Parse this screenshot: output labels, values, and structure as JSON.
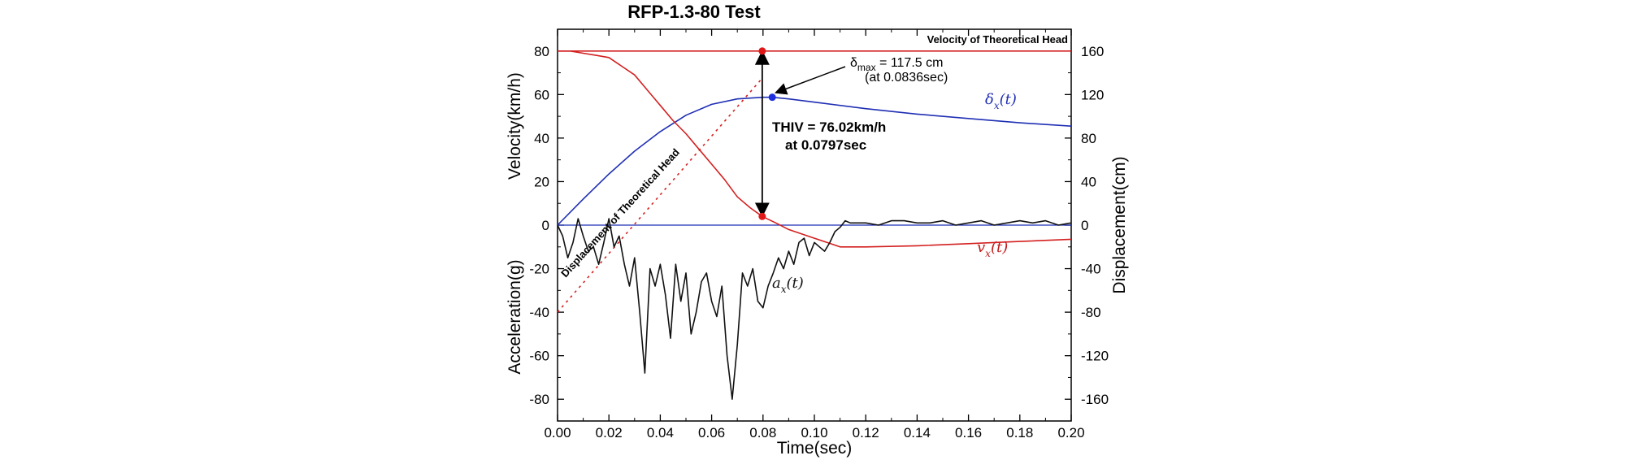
{
  "chart_data": {
    "type": "line",
    "title": "RFP-1.3-80 Test",
    "xlabel": "Time(sec)",
    "ylabel_left_top": "Velocity(km/h)",
    "ylabel_left_bottom": "Acceleration(g)",
    "ylabel_right": "Displacement(cm)",
    "xlim": [
      0,
      0.2
    ],
    "ylim_left": [
      -90,
      90
    ],
    "ylim_right": [
      -180,
      180
    ],
    "x_ticks": [
      0.0,
      0.02,
      0.04,
      0.06,
      0.08,
      0.1,
      0.12,
      0.14,
      0.16,
      0.18,
      0.2
    ],
    "x_tick_labels": [
      "0.00",
      "0.02",
      "0.04",
      "0.06",
      "0.08",
      "0.10",
      "0.12",
      "0.14",
      "0.16",
      "0.18",
      "0.20"
    ],
    "y_left_ticks": [
      80,
      60,
      40,
      20,
      0,
      -20,
      -40,
      -60,
      -80
    ],
    "y_left_tick_labels": [
      "80",
      "60",
      "40",
      "20",
      "0",
      "-20",
      "-40",
      "-60",
      "-80"
    ],
    "y_right_ticks": [
      160,
      120,
      80,
      40,
      0,
      -40,
      -80,
      -120,
      -160
    ],
    "y_right_tick_labels": [
      "160",
      "120",
      "80",
      "40",
      "0",
      "-40",
      "-80",
      "-120",
      "-160"
    ],
    "grid": false,
    "series": [
      {
        "name": "δx(t)",
        "label_main": "δ",
        "label_sub": "x",
        "label_arg": "(t)",
        "color": "#1f2fb4",
        "axis": "right",
        "x": [
          0,
          0.01,
          0.02,
          0.03,
          0.04,
          0.05,
          0.06,
          0.07,
          0.08,
          0.0836,
          0.09,
          0.1,
          0.12,
          0.14,
          0.16,
          0.18,
          0.2
        ],
        "y": [
          0,
          24,
          47,
          68,
          86,
          101,
          111,
          116,
          117.5,
          117.5,
          116,
          113,
          107,
          102,
          98,
          94,
          91
        ]
      },
      {
        "name": "vx(t)",
        "label_main": "v",
        "label_sub": "x",
        "label_arg": "(t)",
        "color": "#d42020",
        "axis": "left",
        "x": [
          0,
          0.005,
          0.01,
          0.015,
          0.02,
          0.025,
          0.03,
          0.035,
          0.04,
          0.045,
          0.05,
          0.055,
          0.06,
          0.065,
          0.07,
          0.075,
          0.0797,
          0.085,
          0.09,
          0.095,
          0.1,
          0.105,
          0.11,
          0.12,
          0.14,
          0.16,
          0.18,
          0.2
        ],
        "y": [
          80,
          80,
          79,
          78,
          77,
          73,
          69,
          62,
          55,
          48,
          42,
          35,
          28,
          21,
          13,
          8,
          4,
          1,
          -2,
          -4,
          -6,
          -8,
          -10,
          -10,
          -9.5,
          -8.5,
          -7.5,
          -6.5
        ]
      },
      {
        "name": "ax(t)",
        "label_main": "a",
        "label_sub": "x",
        "label_arg": "(t)",
        "color": "#111111",
        "axis": "left",
        "x": [
          0,
          0.002,
          0.004,
          0.006,
          0.008,
          0.01,
          0.012,
          0.014,
          0.016,
          0.018,
          0.02,
          0.022,
          0.024,
          0.026,
          0.028,
          0.03,
          0.032,
          0.034,
          0.036,
          0.038,
          0.04,
          0.042,
          0.044,
          0.046,
          0.048,
          0.05,
          0.052,
          0.054,
          0.056,
          0.058,
          0.06,
          0.062,
          0.064,
          0.066,
          0.068,
          0.07,
          0.072,
          0.074,
          0.076,
          0.078,
          0.08,
          0.082,
          0.084,
          0.086,
          0.088,
          0.09,
          0.092,
          0.094,
          0.096,
          0.098,
          0.1,
          0.102,
          0.104,
          0.106,
          0.108,
          0.11,
          0.112,
          0.114,
          0.118,
          0.12,
          0.125,
          0.13,
          0.135,
          0.14,
          0.145,
          0.15,
          0.155,
          0.16,
          0.165,
          0.17,
          0.175,
          0.18,
          0.185,
          0.19,
          0.195,
          0.2
        ],
        "y": [
          0,
          -5,
          -15,
          -8,
          3,
          -5,
          -12,
          -10,
          -18,
          -8,
          3,
          -10,
          -5,
          -18,
          -28,
          -15,
          -40,
          -68,
          -20,
          -28,
          -18,
          -32,
          -52,
          -18,
          -35,
          -22,
          -50,
          -40,
          -26,
          -22,
          -35,
          -42,
          -28,
          -60,
          -80,
          -55,
          -22,
          -28,
          -20,
          -35,
          -38,
          -28,
          -22,
          -15,
          -20,
          -12,
          -18,
          -8,
          -6,
          -14,
          -8,
          -10,
          -12,
          -8,
          -3,
          -1,
          2,
          1,
          1,
          1,
          0,
          2,
          2,
          1,
          1,
          2,
          0,
          1,
          2,
          0,
          1,
          2,
          1,
          2,
          0,
          1
        ]
      }
    ],
    "reference_lines": {
      "velocity_head_value": 80,
      "velocity_head_label": "Velocity of Theoretical Head",
      "displacement_head_label": "Displacement of Theoretical Head",
      "displacement_head_x": [
        0,
        0.0797
      ],
      "displacement_head_y_right": [
        -80,
        135
      ]
    },
    "annotations": {
      "delta_symbol": "δ",
      "delta_sub": "max",
      "delta_value": " = 117.5 cm",
      "delta_time": "(at 0.0836sec)",
      "delta_point_x": 0.0836,
      "delta_point_y_right": 117.5,
      "thiv_line1": "THIV = 76.02km/h",
      "thiv_line2": "at 0.0797sec",
      "thiv_x": 0.0797,
      "thiv_top_value": 80,
      "thiv_bottom_value": 4
    }
  }
}
